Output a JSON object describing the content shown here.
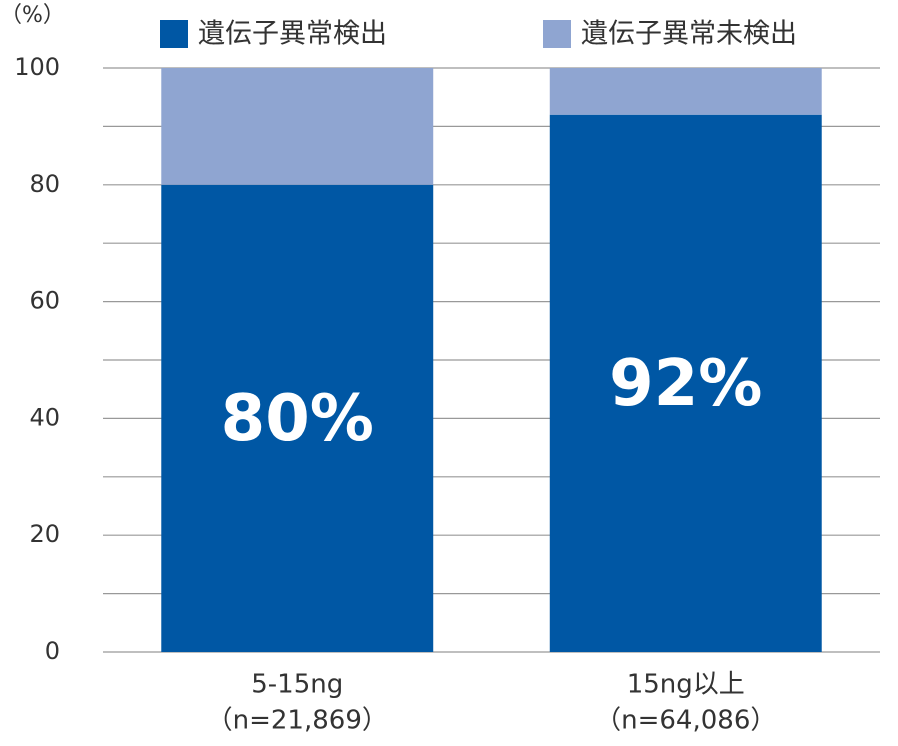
{
  "chart_data": {
    "type": "stacked-bar",
    "y_unit_label": "（%）",
    "categories": [
      [
        "5-15ng",
        "（n=21,869）"
      ],
      [
        "15ng以上",
        "（n=64,086）"
      ]
    ],
    "series": [
      {
        "name": "遺伝子異常検出",
        "color": "#0057a4",
        "values": [
          80,
          92
        ],
        "value_labels": [
          "80%",
          "92%"
        ]
      },
      {
        "name": "遺伝子異常未検出",
        "color": "#8fa5d1",
        "values": [
          20,
          8
        ]
      }
    ],
    "ylim": [
      0,
      100
    ],
    "yticks": [
      0,
      20,
      40,
      60,
      80,
      100
    ],
    "minor_yticks": [
      10,
      30,
      50,
      70,
      90
    ],
    "grid": true
  }
}
